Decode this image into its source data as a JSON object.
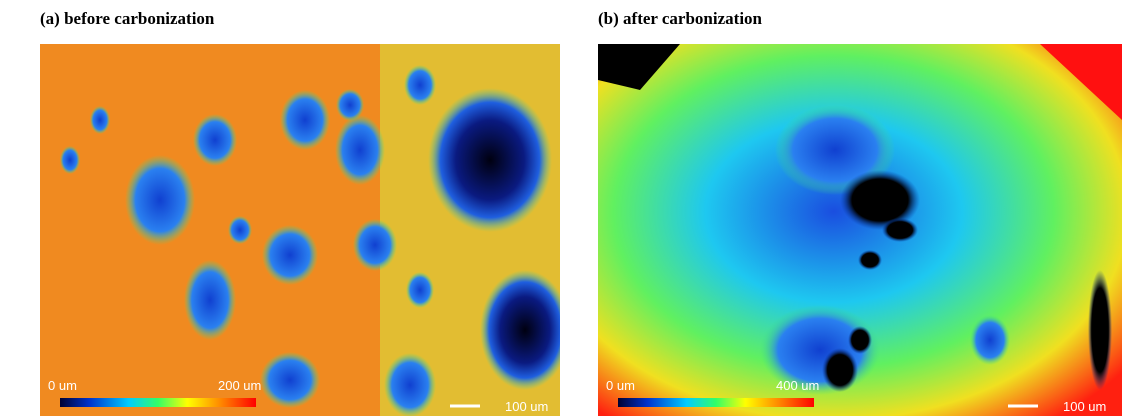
{
  "panels": [
    {
      "title": "(a) before carbonization",
      "colorbar": {
        "min_label": "0 um",
        "max_label": "200 um"
      },
      "scale_bar": "100 um"
    },
    {
      "title": "(b) after carbonization",
      "colorbar": {
        "min_label": "0 um",
        "max_label": "400 um"
      },
      "scale_bar": "100 um"
    }
  ]
}
